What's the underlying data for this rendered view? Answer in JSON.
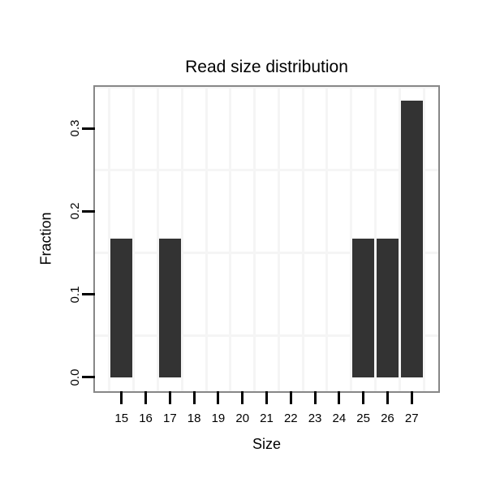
{
  "chart_data": {
    "type": "bar",
    "title": "Read size distribution",
    "xlabel": "Size",
    "ylabel": "Fraction",
    "categories": [
      15,
      16,
      17,
      18,
      19,
      20,
      21,
      22,
      23,
      24,
      25,
      26,
      27
    ],
    "values": [
      0.1667,
      0,
      0.1667,
      0,
      0,
      0,
      0,
      0,
      0,
      0,
      0.1667,
      0.1667,
      0.3333
    ],
    "xlim": [
      13.9,
      28.1
    ],
    "ylim": [
      -0.0167,
      0.35
    ],
    "yticks": [
      0.0,
      0.1,
      0.2,
      0.3
    ],
    "ytick_labels": [
      "0.0",
      "0.1",
      "0.2",
      "0.3"
    ],
    "xtick_labels": [
      "15",
      "16",
      "17",
      "18",
      "19",
      "20",
      "21",
      "22",
      "23",
      "24",
      "25",
      "26",
      "27"
    ],
    "minor_gridlines_x": [
      14.5,
      15.5,
      16.5,
      17.5,
      18.5,
      19.5,
      20.5,
      21.5,
      22.5,
      23.5,
      24.5,
      25.5,
      26.5,
      27.5
    ],
    "minor_gridlines_y": [
      0.05,
      0.15,
      0.25,
      0.35
    ],
    "bar_width_units": 0.9,
    "grid_visible": true,
    "legend": "none",
    "colors": {
      "bar_fill": "#333333",
      "panel_border": "#878787",
      "gridline": "#f5f5f5",
      "tick": "#000000",
      "text": "#000000",
      "background": "#ffffff"
    }
  }
}
